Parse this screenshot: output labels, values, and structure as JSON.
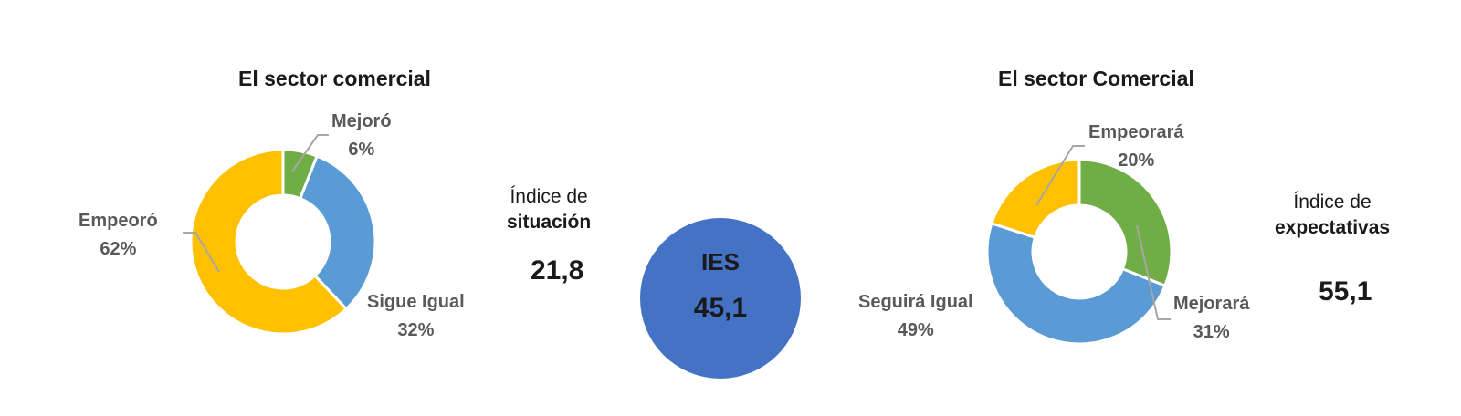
{
  "chart_data": [
    {
      "type": "pie",
      "subtype": "donut",
      "title": "El sector comercial",
      "categories": [
        "Mejoró",
        "Sigue Igual",
        "Empeoró"
      ],
      "values": [
        6,
        32,
        62
      ],
      "value_labels": [
        "6%",
        "32%",
        "62%"
      ],
      "colors": [
        "#70ad47",
        "#5b9bd5",
        "#ffc000"
      ]
    },
    {
      "type": "pie",
      "subtype": "donut",
      "title": "El sector Comercial",
      "categories": [
        "Mejorará",
        "Seguirá Igual",
        "Empeorará"
      ],
      "values": [
        31,
        49,
        20
      ],
      "value_labels": [
        "31%",
        "49%",
        "20%"
      ],
      "colors": [
        "#70ad47",
        "#5b9bd5",
        "#ffc000"
      ]
    }
  ],
  "indices": {
    "situacion": {
      "line1": "Índice de",
      "line2": "situación",
      "value": "21,8"
    },
    "ies": {
      "label": "IES",
      "value": "45,1",
      "color": "#4472c4"
    },
    "expectativas": {
      "line1": "Índice de",
      "line2": "expectativas",
      "value": "55,1"
    }
  }
}
